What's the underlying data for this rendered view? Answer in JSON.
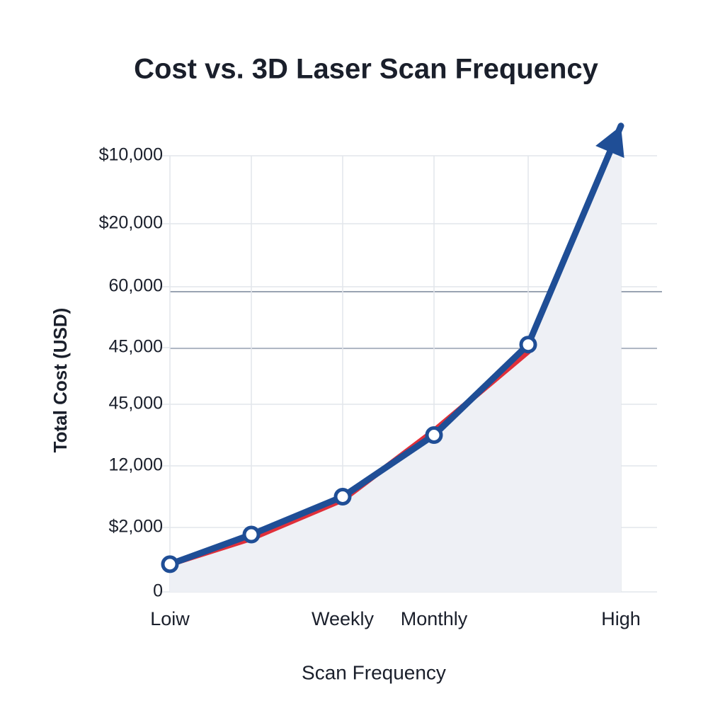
{
  "chart_data": {
    "type": "line",
    "title": "Cost vs. 3D Laser Scan Frequency",
    "x_label": "Scan Frequency",
    "y_label": "Total Cost (USD)",
    "categories": [
      "Loiw",
      null,
      "Weekly",
      "Monthly",
      null,
      "High"
    ],
    "y_categories": [
      "0",
      "$2,000",
      "12,000",
      "45,000",
      "45,000",
      "60,000",
      "$20,000",
      "$10,000"
    ],
    "series": [
      {
        "name": "Blue",
        "color": "#1f4e96",
        "values": [
          0.43,
          0.89,
          1.5,
          2.5,
          4.05,
          7.44
        ]
      },
      {
        "name": "Red",
        "color": "#e0303a",
        "values": [
          0.43,
          0.83,
          1.45,
          2.57,
          3.93,
          null
        ]
      }
    ],
    "grid": true
  }
}
